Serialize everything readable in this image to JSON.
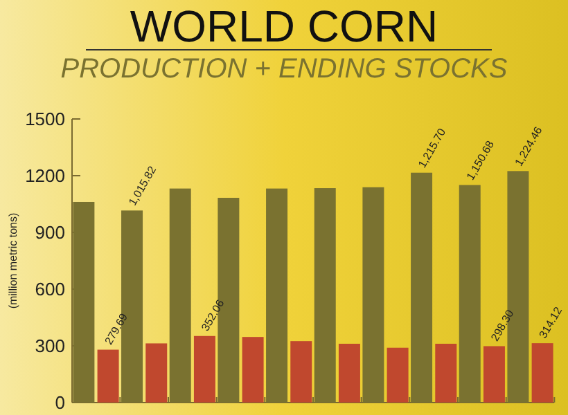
{
  "chart_data": {
    "type": "bar",
    "title": "WORLD CORN",
    "subtitle": "PRODUCTION + ENDING STOCKS",
    "ylabel": "(million metric tons)",
    "categories": [
      null,
      null,
      null,
      null,
      null,
      null,
      null,
      null,
      null,
      null
    ],
    "series": [
      {
        "color": "#7a7230",
        "values": [
          1061,
          1015.82,
          1132,
          1083,
          1132,
          1134,
          1139,
          1215.7,
          1150.68,
          1224.46
        ],
        "value_labels": [
          null,
          "1,015.82",
          null,
          null,
          null,
          null,
          null,
          "1,215.70",
          "1,150.68",
          "1,224.46"
        ]
      },
      {
        "color": "#c0482e",
        "values": [
          279.69,
          313,
          352.06,
          347,
          325,
          311,
          290,
          311,
          298.3,
          314.12
        ],
        "value_labels": [
          "279.69",
          null,
          "352.06",
          null,
          null,
          null,
          null,
          null,
          "298.30",
          "314.12"
        ]
      }
    ],
    "ylim": [
      0,
      1500
    ],
    "yticks": [
      0,
      300,
      600,
      900,
      1200,
      1500
    ],
    "grid": false
  }
}
